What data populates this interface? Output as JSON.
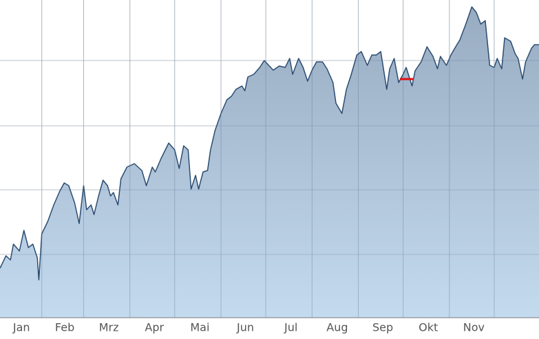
{
  "chart_data": {
    "type": "area",
    "categories": [
      "Jan",
      "Feb",
      "Mrz",
      "Apr",
      "Mai",
      "Jun",
      "Jul",
      "Aug",
      "Sep",
      "Okt",
      "Nov"
    ],
    "x": [
      3,
      7,
      10,
      12,
      16,
      19,
      22,
      25,
      28,
      29,
      31,
      35,
      39,
      43,
      46,
      49,
      53,
      56,
      59,
      61,
      64,
      66,
      69,
      72,
      75,
      77,
      79,
      82,
      84,
      88,
      93,
      98,
      101,
      105,
      107,
      111,
      116,
      120,
      123,
      126,
      129,
      131,
      134,
      136,
      139,
      142,
      144,
      147,
      151,
      155,
      158,
      161,
      165,
      167,
      169,
      173,
      177,
      180,
      183,
      186,
      190,
      194,
      197,
      199,
      203,
      206,
      209,
      212,
      215,
      219,
      222,
      226,
      228,
      232,
      235,
      238,
      242,
      245,
      249,
      252,
      255,
      258,
      262,
      264,
      267,
      270,
      273,
      275,
      279,
      281,
      285,
      289,
      293,
      296,
      298,
      302,
      305,
      309,
      311,
      315,
      319,
      322,
      325,
      328,
      331,
      334,
      336,
      339,
      341,
      345,
      348,
      350,
      353,
      355,
      359,
      361,
      364
    ],
    "values": [
      72,
      90,
      84,
      107,
      97,
      127,
      102,
      107,
      87,
      55,
      122,
      140,
      164,
      184,
      196,
      192,
      167,
      137,
      192,
      157,
      164,
      150,
      177,
      200,
      192,
      177,
      182,
      164,
      202,
      219,
      224,
      214,
      192,
      219,
      212,
      232,
      254,
      244,
      217,
      250,
      244,
      187,
      207,
      187,
      212,
      214,
      244,
      272,
      297,
      317,
      322,
      332,
      337,
      330,
      350,
      354,
      364,
      374,
      367,
      360,
      366,
      364,
      377,
      354,
      377,
      364,
      344,
      360,
      372,
      372,
      362,
      342,
      312,
      297,
      332,
      352,
      382,
      387,
      367,
      382,
      382,
      387,
      332,
      362,
      377,
      342,
      354,
      364,
      337,
      359,
      372,
      394,
      380,
      362,
      380,
      367,
      382,
      397,
      404,
      427,
      452,
      444,
      427,
      432,
      367,
      364,
      377,
      362,
      407,
      402,
      384,
      377,
      347,
      372,
      392,
      397,
      397
    ],
    "color": "#2a4b70",
    "fill_gradient": [
      "#8aa0b9",
      "#bcd5ec"
    ],
    "xlim": [
      3,
      364
    ],
    "xticks": [
      31,
      59,
      90,
      120,
      151,
      181,
      212,
      243,
      273,
      304,
      334
    ],
    "ylim": [
      0,
      462
    ],
    "yticks": [
      92,
      186,
      279,
      374
    ],
    "grid": true
  }
}
